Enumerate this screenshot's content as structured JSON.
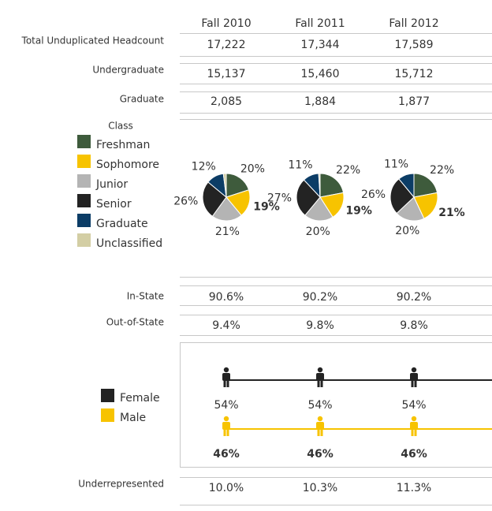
{
  "columns": [
    "Fall 2010",
    "Fall 2011",
    "Fall 2012"
  ],
  "headcount_rows": [
    {
      "label": "Total Unduplicated Headcount",
      "values": [
        "17,222",
        "17,344",
        "17,589"
      ]
    },
    {
      "label": "Undergraduate",
      "values": [
        "15,137",
        "15,460",
        "15,712"
      ]
    },
    {
      "label": "Graduate",
      "values": [
        "2,085",
        "1,884",
        "1,877"
      ]
    }
  ],
  "class_chart": {
    "type": "pie",
    "title": "Class",
    "legend": [
      "Freshman",
      "Sophomore",
      "Junior",
      "Senior",
      "Graduate",
      "Unclassified"
    ],
    "colors": [
      "#3e5b3c",
      "#f7c300",
      "#b4b4b4",
      "#232323",
      "#0c3d66",
      "#d3cea4"
    ],
    "pies": [
      {
        "values": [
          20,
          19,
          21,
          26,
          12,
          2
        ],
        "value_labels": [
          "20%",
          "19%",
          "21%",
          "26%",
          "12%",
          null
        ]
      },
      {
        "values": [
          22,
          19,
          20,
          27,
          11,
          1
        ],
        "value_labels": [
          "22%",
          "19%",
          "20%",
          "27%",
          "11%",
          null
        ]
      },
      {
        "values": [
          22,
          21,
          20,
          26,
          11,
          0
        ],
        "value_labels": [
          "22%",
          "21%",
          "20%",
          "26%",
          "11%",
          null
        ]
      }
    ]
  },
  "residency_rows": [
    {
      "label": "In-State",
      "values": [
        "90.6%",
        "90.2%",
        "90.2%"
      ]
    },
    {
      "label": "Out-of-State",
      "values": [
        "9.4%",
        "9.8%",
        "9.8%"
      ]
    }
  ],
  "gender_chart": {
    "type": "line",
    "series": [
      {
        "name": "Female",
        "color": "#232323",
        "values": [
          54,
          54,
          54
        ],
        "value_labels": [
          "54%",
          "54%",
          "54%"
        ]
      },
      {
        "name": "Male",
        "color": "#f7c300",
        "values": [
          46,
          46,
          46
        ],
        "value_labels": [
          "46%",
          "46%",
          "46%"
        ]
      }
    ]
  },
  "underrepresented_row": {
    "label": "Underrepresented",
    "values": [
      "10.0%",
      "10.3%",
      "11.3%"
    ]
  }
}
